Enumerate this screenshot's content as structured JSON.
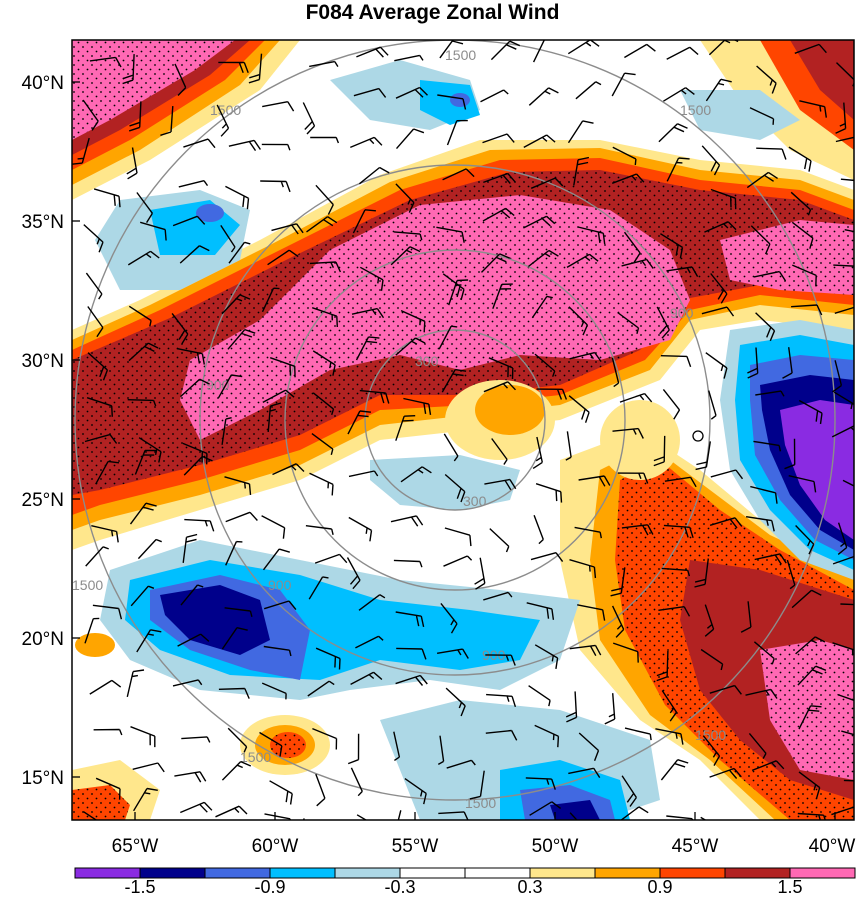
{
  "title": "F084 Average Zonal Wind",
  "map": {
    "lat_labels": [
      "40°N",
      "35°N",
      "30°N",
      "25°N",
      "20°N",
      "15°N"
    ],
    "lon_labels": [
      "65°W",
      "60°W",
      "55°W",
      "50°W",
      "45°W",
      "40°W"
    ],
    "range_ring_labels": [
      "300",
      "300",
      "900",
      "900",
      "900",
      "900",
      "1500",
      "1500",
      "1500",
      "1500",
      "1500",
      "1500",
      "1500"
    ]
  },
  "colorbar": {
    "tick_labels": [
      "-1.5",
      "-0.9",
      "-0.3",
      "0.3",
      "0.9",
      "1.5"
    ],
    "colors": [
      "#8a2be2",
      "#00008b",
      "#4169e1",
      "#00bfff",
      "#add8e6",
      "#ffffff",
      "#ffffff",
      "#ffe78c",
      "#ffa500",
      "#ff4500",
      "#b22222",
      "#ff69b4"
    ]
  }
}
